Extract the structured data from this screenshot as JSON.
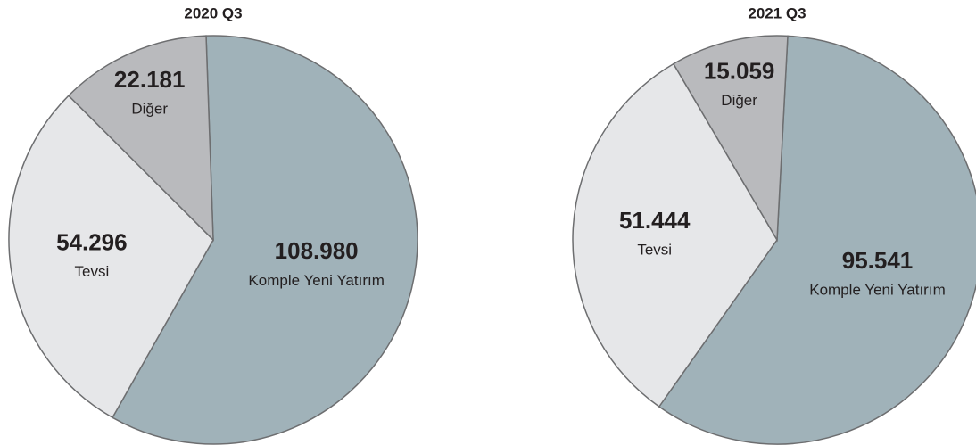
{
  "chart_data": [
    {
      "type": "pie",
      "title": "2020 Q3",
      "categories": [
        "Komple Yeni Yatırım",
        "Tevsi",
        "Diğer"
      ],
      "values": [
        108980,
        54296,
        22181
      ],
      "value_labels": [
        "108.980",
        "54.296",
        "22.181"
      ],
      "colors": [
        "#a0b2b9",
        "#e6e7e9",
        "#b9babd"
      ]
    },
    {
      "type": "pie",
      "title": "2021 Q3",
      "categories": [
        "Komple Yeni Yatırım",
        "Tevsi",
        "Diğer"
      ],
      "values": [
        95541,
        51444,
        15059
      ],
      "value_labels": [
        "95.541",
        "51.444",
        "15.059"
      ],
      "colors": [
        "#a0b2b9",
        "#e6e7e9",
        "#b9babd"
      ]
    }
  ]
}
